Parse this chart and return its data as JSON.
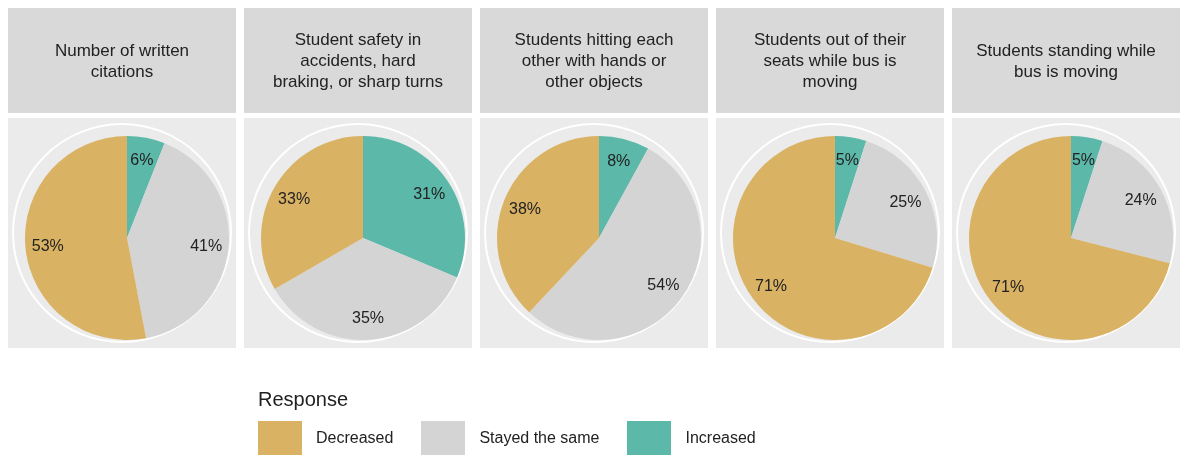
{
  "chart_data": [
    {
      "type": "pie",
      "title": "Number of written citations",
      "categories": [
        "Increased",
        "Stayed the same",
        "Decreased"
      ],
      "values": [
        6,
        41,
        53
      ],
      "value_labels": [
        "6%",
        "41%",
        "53%"
      ],
      "colors": [
        "#5cb8a9",
        "#d4d4d4",
        "#d9b263"
      ],
      "legend": "bottom",
      "legend_title": "Response"
    },
    {
      "type": "pie",
      "title": "Student safety in accidents, hard braking, or sharp turns",
      "values": [
        31,
        35,
        33
      ],
      "value_labels": [
        "31%",
        "35%",
        "33%"
      ],
      "colors": [
        "#5cb8a9",
        "#d4d4d4",
        "#d9b263"
      ]
    },
    {
      "type": "pie",
      "title": "Students hitting each other with hands or other objects",
      "values": [
        8,
        54,
        38
      ],
      "value_labels": [
        "8%",
        "54%",
        "38%"
      ],
      "colors": [
        "#5cb8a9",
        "#d4d4d4",
        "#d9b263"
      ]
    },
    {
      "type": "pie",
      "title": "Students out of their seats while bus is moving",
      "values": [
        5,
        25,
        71
      ],
      "value_labels": [
        "5%",
        "25%",
        "71%"
      ],
      "colors": [
        "#5cb8a9",
        "#d4d4d4",
        "#d9b263"
      ]
    },
    {
      "type": "pie",
      "title": "Students standing while bus is moving",
      "values": [
        5,
        24,
        71
      ],
      "value_labels": [
        "5%",
        "24%",
        "71%"
      ],
      "colors": [
        "#5cb8a9",
        "#d4d4d4",
        "#d9b263"
      ]
    }
  ]
}
